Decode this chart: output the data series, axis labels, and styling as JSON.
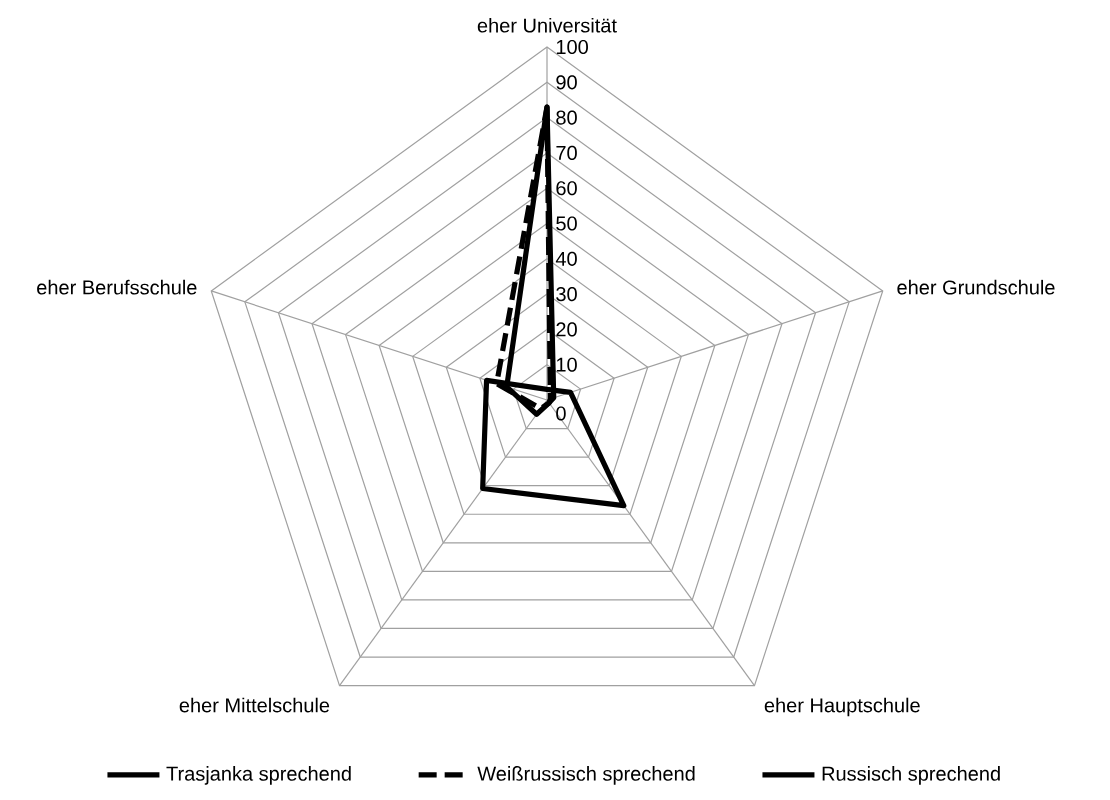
{
  "chart_data": {
    "type": "radar",
    "categories": [
      "eher Universität",
      "eher Grundschule",
      "eher Hauptschule",
      "eher Mittelschule",
      "eher Berufsschule"
    ],
    "series": [
      {
        "name": "Trasjanka sprechend",
        "color": "#000000",
        "line_style": "solid",
        "values": [
          3,
          7,
          37,
          31,
          18
        ]
      },
      {
        "name": "Weißrussisch sprechend",
        "color": "#000000",
        "line_style": "dashed",
        "values": [
          83,
          1,
          1,
          3,
          15
        ]
      },
      {
        "name": "Russisch sprechend",
        "color": "#000000",
        "line_style": "solid",
        "values": [
          83,
          2,
          1,
          5,
          12
        ]
      }
    ],
    "ylim": [
      0,
      100
    ],
    "yticks": [
      0,
      10,
      20,
      30,
      40,
      50,
      60,
      70,
      80,
      90,
      100
    ],
    "grid": true,
    "legend": "bottom"
  }
}
